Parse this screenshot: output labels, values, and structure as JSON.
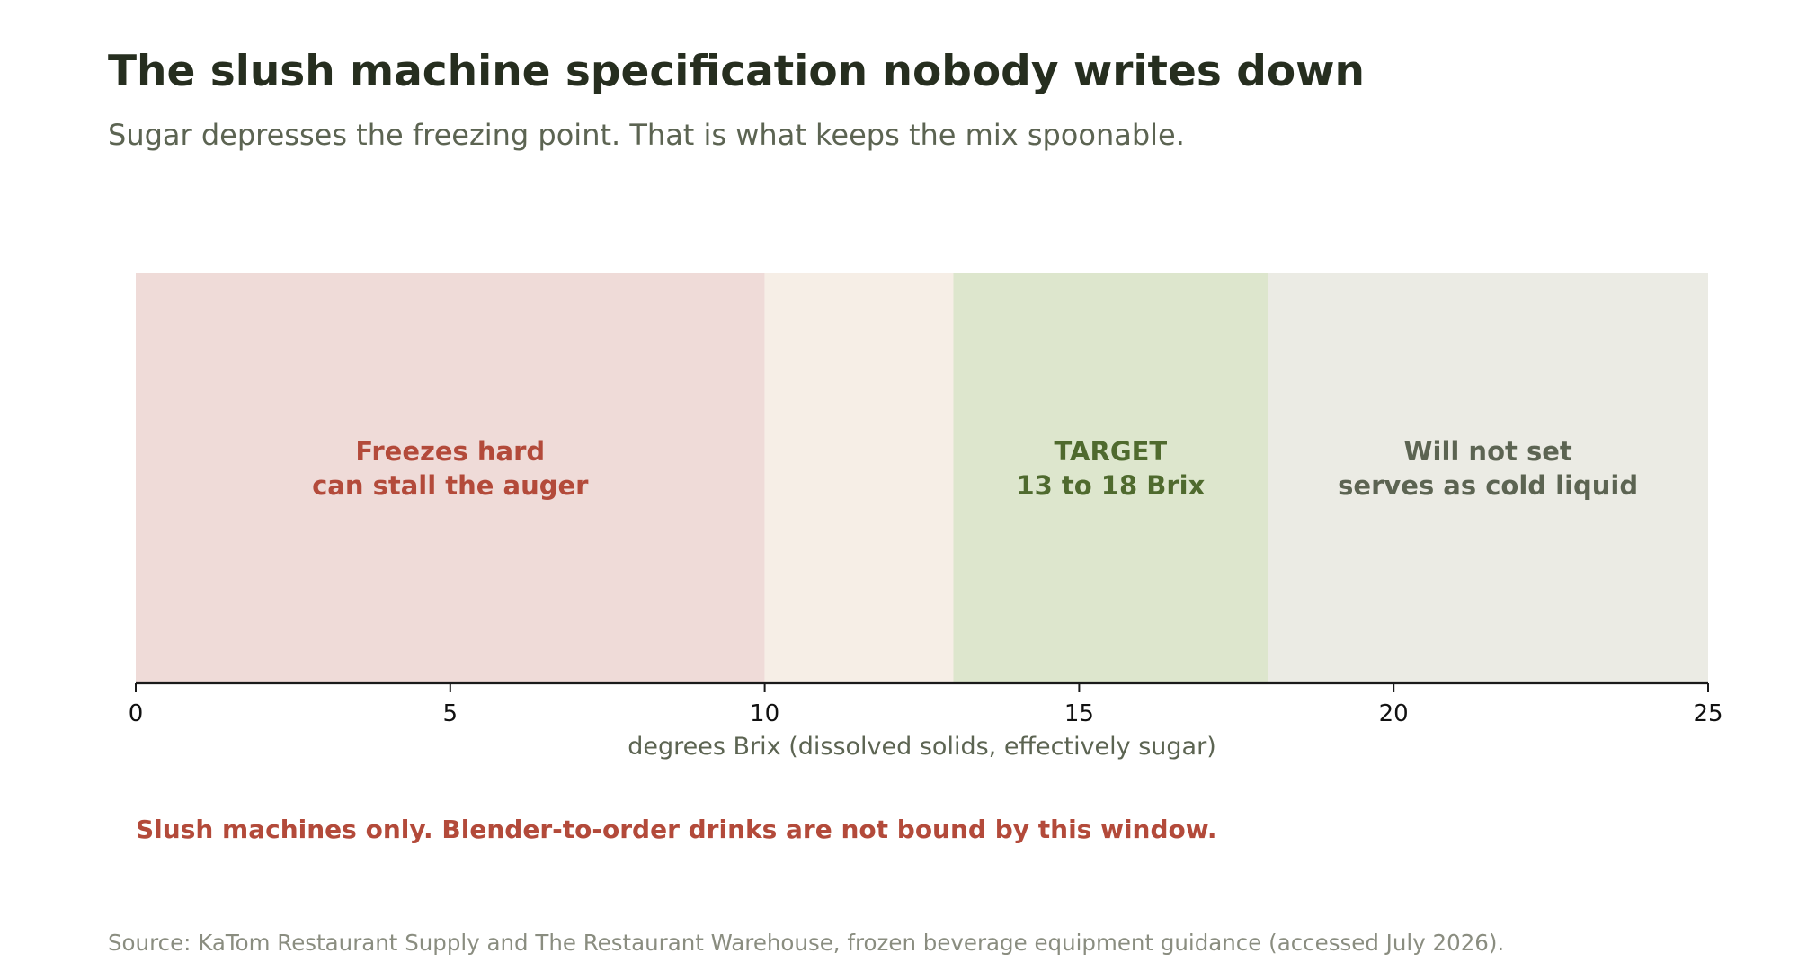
{
  "title": "The slush machine specification nobody writes down",
  "subtitle": "Sugar depresses the freezing point. That is what keeps the mix spoonable.",
  "note": "Slush machines only. Blender-to-order drinks are not bound by this window.",
  "source": "Source: KaTom Restaurant Supply and The Restaurant Warehouse, frozen beverage equipment guidance (accessed July 2026).",
  "colors": {
    "title": "#262e1f",
    "subtitle": "#5c6452",
    "axis": "#1a1a1a",
    "note": "#b34a3a",
    "source": "#8a8d80"
  },
  "chart_data": {
    "type": "bar",
    "orientation": "horizontal-bands",
    "xlabel": "degrees Brix (dissolved solids, effectively sugar)",
    "xlim": [
      0,
      25
    ],
    "xticks": [
      0,
      5,
      10,
      15,
      20,
      25
    ],
    "grid": false,
    "legend": "none",
    "bands": [
      {
        "start": 0,
        "end": 10,
        "fill": "#efdbd8",
        "label_color": "#b34a3a",
        "label_lines": [
          "Freezes hard",
          "can stall the auger"
        ]
      },
      {
        "start": 10,
        "end": 13,
        "fill": "#f6eee6",
        "label_color": "#5c6452",
        "label_lines": []
      },
      {
        "start": 13,
        "end": 18,
        "fill": "#dde6cd",
        "label_color": "#4f6a2e",
        "label_lines": [
          "TARGET",
          "13 to 18 Brix"
        ]
      },
      {
        "start": 18,
        "end": 25,
        "fill": "#ebebe4",
        "label_color": "#5c6452",
        "label_lines": [
          "Will not set",
          "serves as cold liquid"
        ]
      }
    ]
  }
}
